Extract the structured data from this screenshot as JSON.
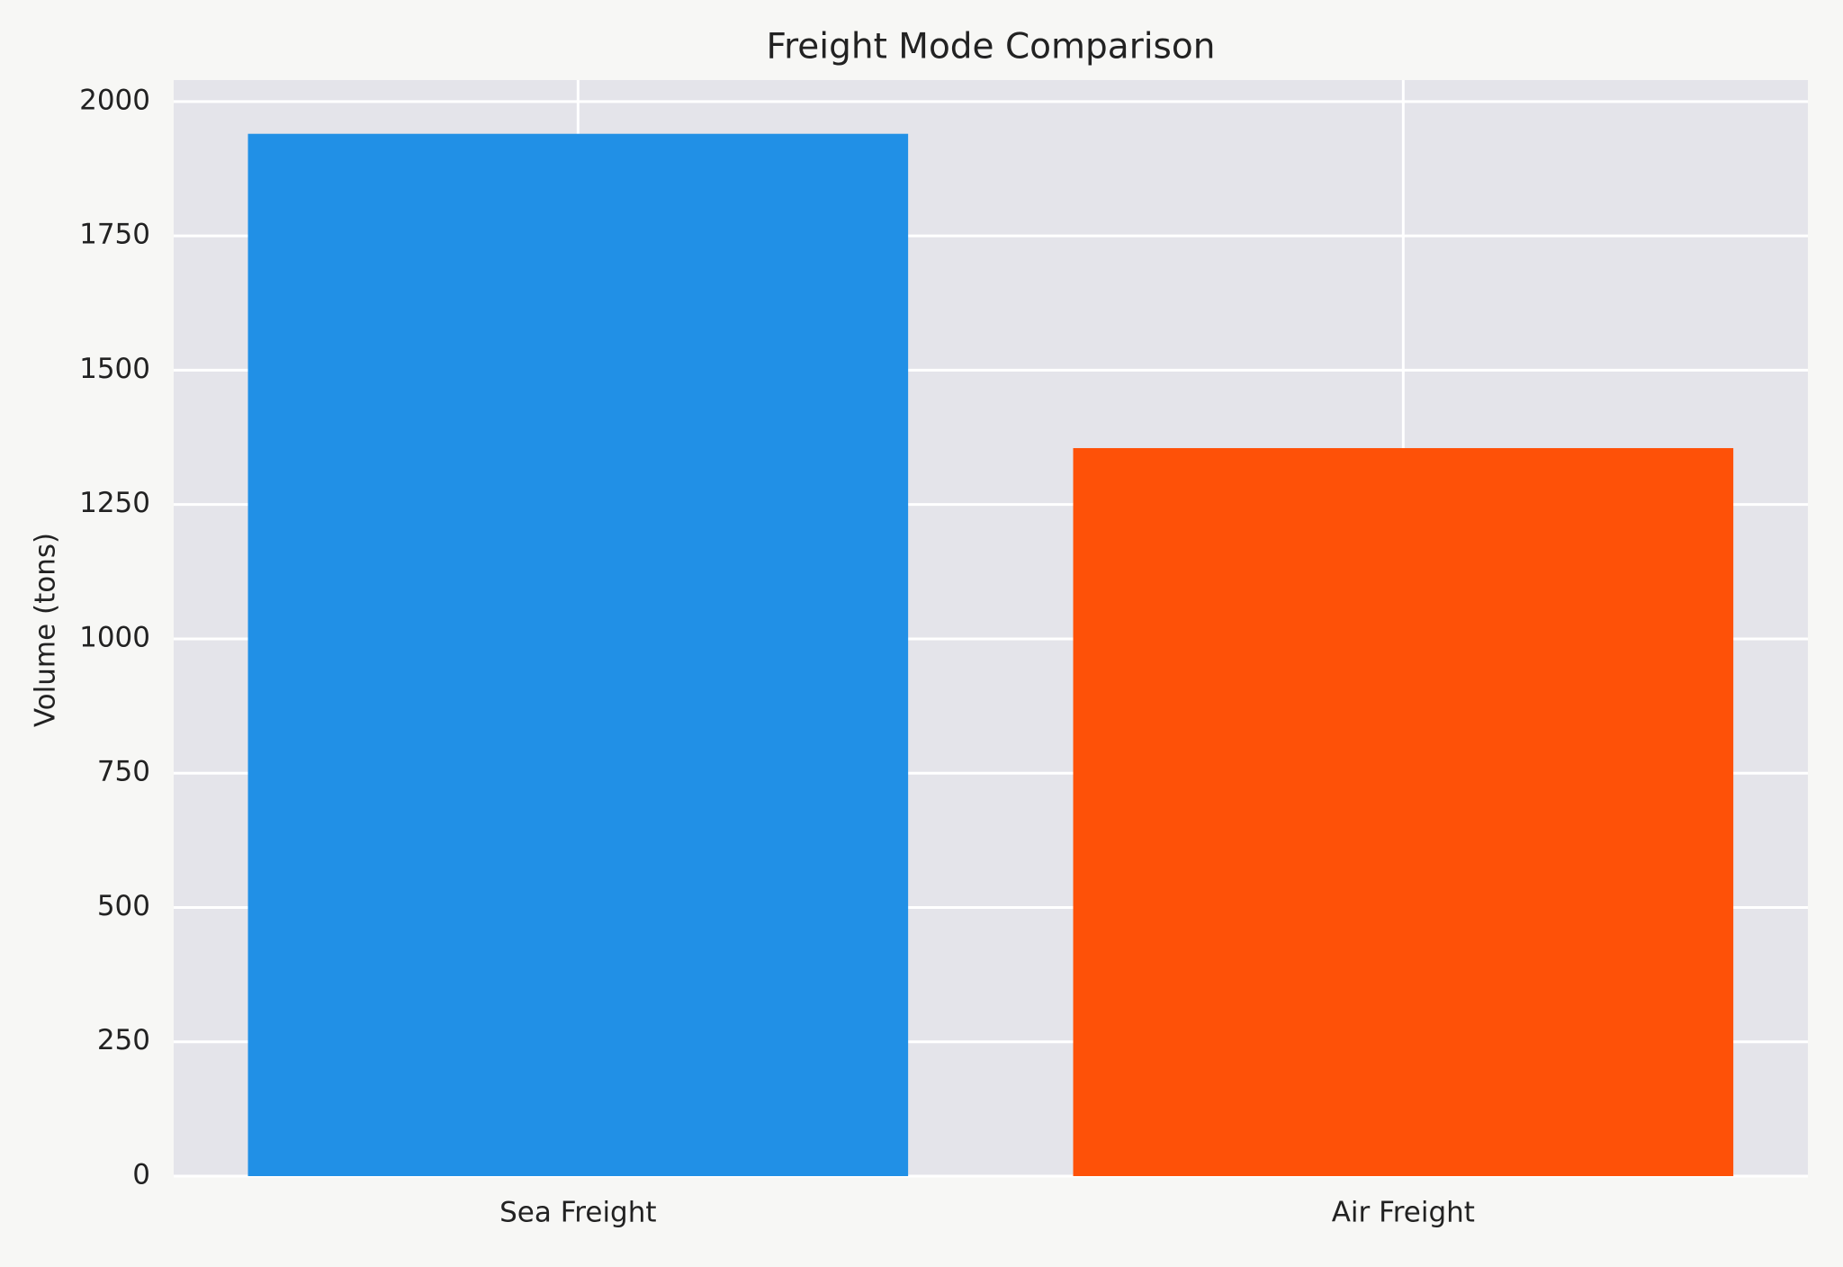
{
  "chart_data": {
    "type": "bar",
    "title": "Freight Mode Comparison",
    "y_label": "Volume (tons)",
    "categories": [
      "Sea Freight",
      "Air Freight"
    ],
    "values": [
      1940,
      1355
    ],
    "colors": [
      "#2190e6",
      "#fe5108"
    ],
    "ylim": [
      0,
      2040
    ],
    "yticks": [
      0,
      250,
      500,
      750,
      1000,
      1250,
      1500,
      1750,
      2000
    ],
    "grid": true
  }
}
